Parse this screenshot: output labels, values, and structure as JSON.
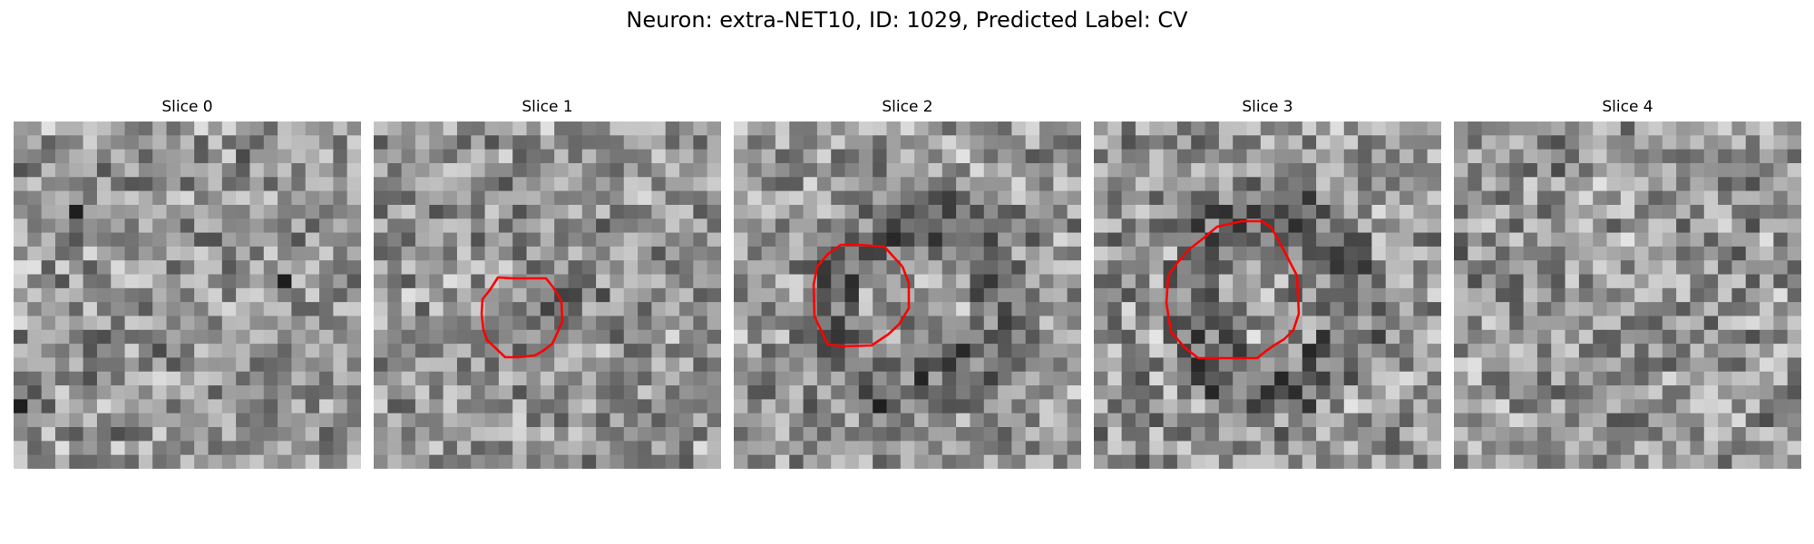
{
  "figure": {
    "title": "Neuron: extra-NET10, ID: 1029, Predicted Label: CV"
  },
  "grid_size": 25,
  "contour_color": "#ff0000",
  "panels": [
    {
      "title": "Slice 0",
      "has_contour": false,
      "seed": 11
    },
    {
      "title": "Slice 1",
      "has_contour": true,
      "seed": 23,
      "dark_blob": "medium"
    },
    {
      "title": "Slice 2",
      "has_contour": true,
      "seed": 37,
      "dark_blob": "ring"
    },
    {
      "title": "Slice 3",
      "has_contour": true,
      "seed": 53,
      "dark_blob": "ring"
    },
    {
      "title": "Slice 4",
      "has_contour": false,
      "seed": 71
    }
  ]
}
